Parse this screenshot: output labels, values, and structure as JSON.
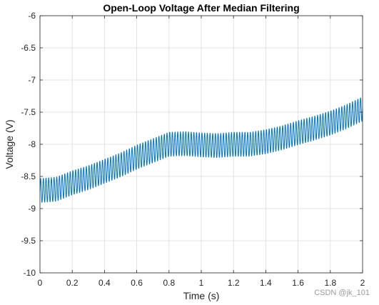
{
  "chart_data": {
    "type": "line",
    "title": "Open-Loop Voltage After Median Filtering",
    "xlabel": "Time (s)",
    "ylabel": "Voltage (V)",
    "xlim": [
      0,
      2
    ],
    "ylim": [
      -10,
      -6
    ],
    "xticks": [
      0,
      0.2,
      0.4,
      0.6,
      0.8,
      1,
      1.2,
      1.4,
      1.6,
      1.8,
      2
    ],
    "xtick_labels": [
      "0",
      "0.2",
      "0.4",
      "0.6",
      "0.8",
      "1",
      "1.2",
      "1.4",
      "1.6",
      "1.8",
      "2"
    ],
    "yticks": [
      -10,
      -9.5,
      -9,
      -8.5,
      -8,
      -7.5,
      -7,
      -6.5,
      -6
    ],
    "ytick_labels": [
      "-10",
      "-9.5",
      "-9",
      "-8.5",
      "-8",
      "-7.5",
      "-7",
      "-6.5",
      "-6"
    ],
    "grid": true,
    "series": [
      {
        "color": "#0072bd",
        "oscillation_frequency_hz": 60,
        "oscillation_amplitude": 0.19,
        "envelope_center": {
          "x": [
            0,
            0.1,
            0.2,
            0.3,
            0.4,
            0.5,
            0.6,
            0.7,
            0.8,
            0.9,
            1.0,
            1.1,
            1.2,
            1.3,
            1.4,
            1.5,
            1.6,
            1.7,
            1.8,
            1.9,
            2.0
          ],
          "y": [
            -8.72,
            -8.7,
            -8.6,
            -8.52,
            -8.42,
            -8.32,
            -8.2,
            -8.1,
            -8.0,
            -7.99,
            -8.01,
            -8.02,
            -8.0,
            -8.0,
            -7.96,
            -7.9,
            -7.82,
            -7.75,
            -7.67,
            -7.57,
            -7.45
          ]
        }
      }
    ]
  },
  "watermark": "CSDN @jk_101"
}
